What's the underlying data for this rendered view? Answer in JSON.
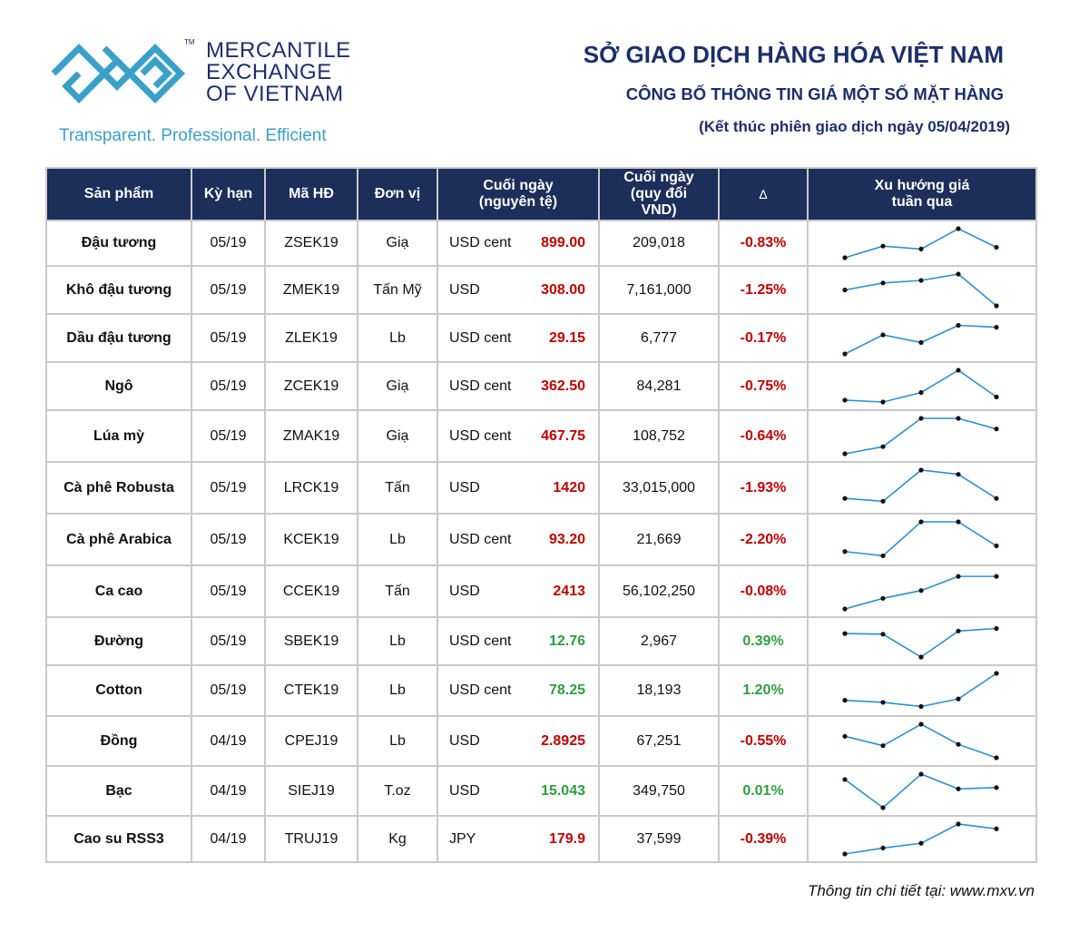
{
  "logo": {
    "line1": "MERCANTILE",
    "line2": "EXCHANGE",
    "line3": "OF VIETNAM",
    "tm": "TM",
    "tagline": "Transparent. Professional. Efficient",
    "colors": {
      "navy": "#1b2f6b",
      "cyan": "#3aa0c8"
    }
  },
  "header": {
    "title": "SỞ GIAO DỊCH HÀNG HÓA VIỆT NAM",
    "subtitle": "CÔNG BỐ THÔNG TIN GIÁ MỘT SỐ MẶT HÀNG",
    "session": "(Kết thúc phiên giao dịch ngày 05/04/2019)"
  },
  "table": {
    "columns": {
      "product": "Sản phẩm",
      "term": "Kỳ hạn",
      "code": "Mã HĐ",
      "unit": "Đơn vị",
      "close_orig": "Cuối ngày (nguyên tệ)",
      "close_vnd": "Cuối ngày (quy đổi VND)",
      "delta": "∆",
      "trend": "Xu hướng giá tuần qua"
    },
    "rows": [
      {
        "product": "Đậu tương",
        "term": "05/19",
        "code": "ZSEK19",
        "unit": "Giạ",
        "currency": "USD cent",
        "price": "899.00",
        "vnd": "209,018",
        "delta": "-0.83%",
        "dir": "neg",
        "trend": [
          1,
          3,
          2.5,
          6,
          2.8
        ]
      },
      {
        "product": "Khô đậu tương",
        "term": "05/19",
        "code": "ZMEK19",
        "unit": "Tấn Mỹ",
        "currency": "USD",
        "price": "308.00",
        "vnd": "7,161,000",
        "delta": "-1.25%",
        "dir": "neg",
        "trend": [
          3.5,
          4.6,
          5,
          6,
          1
        ]
      },
      {
        "product": "Dầu đậu tương",
        "term": "05/19",
        "code": "ZLEK19",
        "unit": "Lb",
        "currency": "USD cent",
        "price": "29.15",
        "vnd": "6,777",
        "delta": "-0.17%",
        "dir": "neg",
        "trend": [
          1,
          4,
          2.8,
          5.5,
          5.2
        ]
      },
      {
        "product": "Ngô",
        "term": "05/19",
        "code": "ZCEK19",
        "unit": "Giạ",
        "currency": "USD cent",
        "price": "362.50",
        "vnd": "84,281",
        "delta": "-0.75%",
        "dir": "neg",
        "trend": [
          1.3,
          1,
          2.5,
          6,
          1.8
        ]
      },
      {
        "product": "Lúa mỳ",
        "term": "05/19",
        "code": "ZMAK19",
        "unit": "Giạ",
        "currency": "USD cent",
        "price": "467.75",
        "vnd": "108,752",
        "delta": "-0.64%",
        "dir": "neg",
        "trend": [
          1,
          2,
          6,
          6,
          4.5
        ]
      },
      {
        "product": "Cà phê Robusta",
        "term": "05/19",
        "code": "LRCK19",
        "unit": "Tấn",
        "currency": "USD",
        "price": "1420",
        "vnd": "33,015,000",
        "delta": "-1.93%",
        "dir": "neg",
        "trend": [
          2,
          1.6,
          6,
          5.4,
          2
        ]
      },
      {
        "product": "Cà phê Arabica",
        "term": "05/19",
        "code": "KCEK19",
        "unit": "Lb",
        "currency": "USD cent",
        "price": "93.20",
        "vnd": "21,669",
        "delta": "-2.20%",
        "dir": "neg",
        "trend": [
          1.8,
          1.2,
          6,
          6,
          2.6
        ]
      },
      {
        "product": "Ca cao",
        "term": "05/19",
        "code": "CCEK19",
        "unit": "Tấn",
        "currency": "USD",
        "price": "2413",
        "vnd": "56,102,250",
        "delta": "-0.08%",
        "dir": "neg",
        "trend": [
          1,
          2.5,
          3.6,
          5.6,
          5.6
        ]
      },
      {
        "product": "Đường",
        "term": "05/19",
        "code": "SBEK19",
        "unit": "Lb",
        "currency": "USD cent",
        "price": "12.76",
        "vnd": "2,967",
        "delta": "0.39%",
        "dir": "pos",
        "trend": [
          4.7,
          4.6,
          1,
          5.1,
          5.5
        ]
      },
      {
        "product": "Cotton",
        "term": "05/19",
        "code": "CTEK19",
        "unit": "Lb",
        "currency": "USD cent",
        "price": "78.25",
        "vnd": "18,193",
        "delta": "1.20%",
        "dir": "pos",
        "trend": [
          2.1,
          1.8,
          1.2,
          2.3,
          6
        ]
      },
      {
        "product": "Đồng",
        "term": "04/19",
        "code": "CPEJ19",
        "unit": "Lb",
        "currency": "USD",
        "price": "2.8925",
        "vnd": "67,251",
        "delta": "-0.55%",
        "dir": "neg",
        "trend": [
          4.2,
          2.8,
          6,
          3,
          1
        ]
      },
      {
        "product": "Bạc",
        "term": "04/19",
        "code": "SIEJ19",
        "unit": "T.oz",
        "currency": "USD",
        "price": "15.043",
        "vnd": "349,750",
        "delta": "0.01%",
        "dir": "pos",
        "trend": [
          5.2,
          1,
          6,
          3.8,
          4
        ]
      },
      {
        "product": "Cao su RSS3",
        "term": "04/19",
        "code": "TRUJ19",
        "unit": "Kg",
        "currency": "JPY",
        "price": "179.9",
        "vnd": "37,599",
        "delta": "-0.39%",
        "dir": "neg",
        "trend": [
          1,
          2,
          2.8,
          6,
          5.2
        ]
      }
    ],
    "colors": {
      "header_bg": "#1c2e5a",
      "neg": "#c00000",
      "pos": "#2e9e3e",
      "trend_line": "#2e8fd0"
    }
  },
  "footer": {
    "text": "Thông tin chi tiết tại: www.mxv.vn"
  }
}
